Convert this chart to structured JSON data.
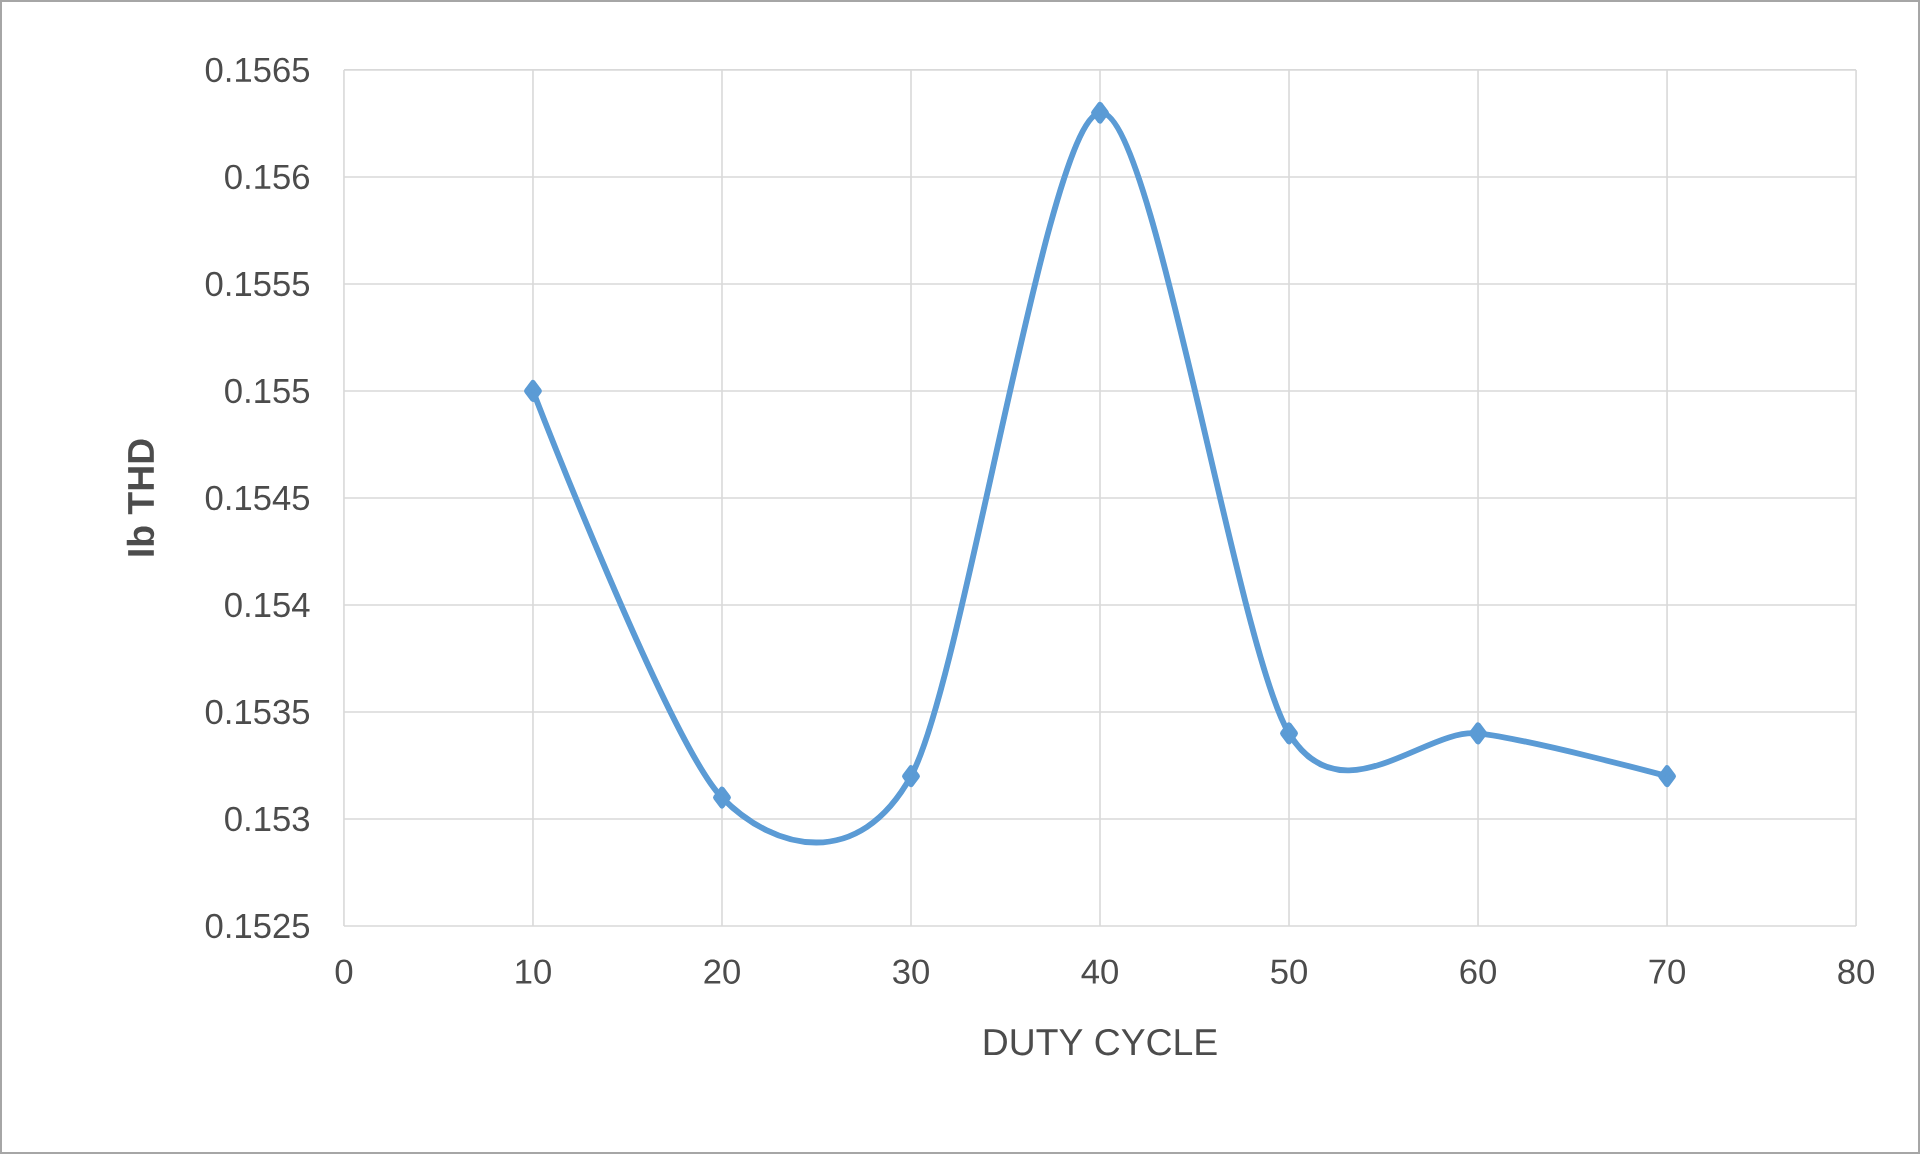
{
  "chart_data": {
    "type": "line",
    "xlabel": "DUTY CYCLE",
    "ylabel": "Ib THD",
    "x": [
      10,
      20,
      30,
      40,
      50,
      60,
      70
    ],
    "series": [
      {
        "color": "#5b9bd5",
        "values": [
          0.155,
          0.1531,
          0.1532,
          0.1563,
          0.1534,
          0.1534,
          0.1532
        ]
      }
    ],
    "xlim": [
      0,
      80
    ],
    "xticks": [
      0,
      10,
      20,
      30,
      40,
      50,
      60,
      70,
      80
    ],
    "ylim": [
      0.1525,
      0.1565
    ],
    "yticks": [
      0.1525,
      0.153,
      0.1535,
      0.154,
      0.1545,
      0.155,
      0.1555,
      0.156,
      0.1565
    ],
    "grid": true,
    "marker": "diamond",
    "line_style": "solid"
  }
}
